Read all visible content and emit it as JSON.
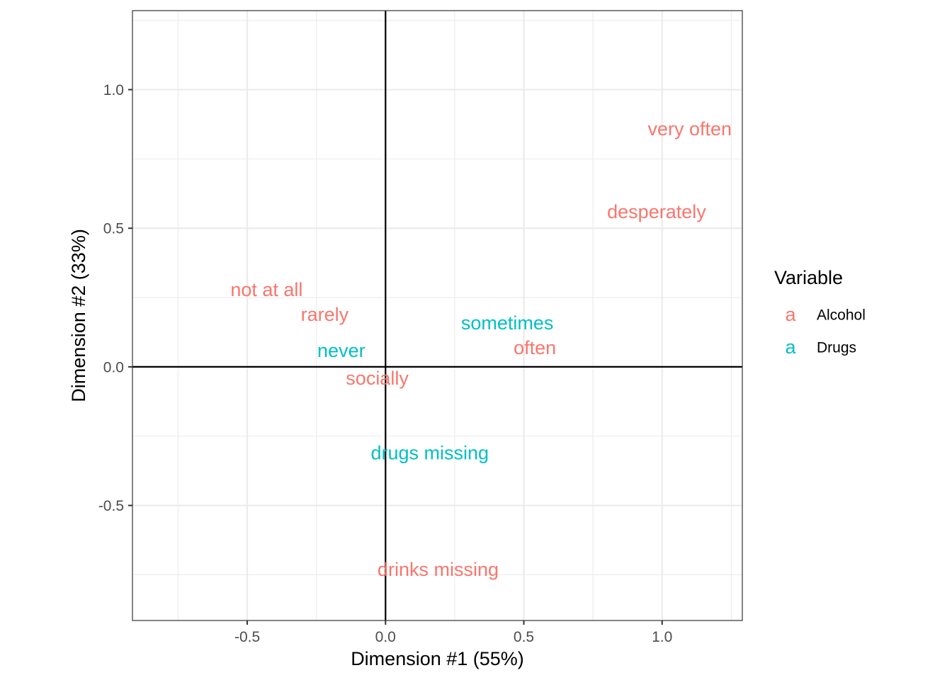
{
  "chart_data": {
    "type": "scatter",
    "xlabel": "Dimension #1 (55%)",
    "ylabel": "Dimension #2 (33%)",
    "xlim": [
      -0.915,
      1.29
    ],
    "ylim": [
      -0.915,
      1.285
    ],
    "x_ticks": [
      -0.5,
      0.0,
      0.5,
      1.0
    ],
    "x_tick_labels": [
      "-0.5",
      "0.0",
      "0.5",
      "1.0"
    ],
    "y_ticks": [
      -0.5,
      0.0,
      0.5,
      1.0
    ],
    "y_tick_labels": [
      "-0.5",
      "0.0",
      "0.5",
      "1.0"
    ],
    "x_minor": [
      -0.75,
      -0.25,
      0.25,
      0.75,
      1.25
    ],
    "y_minor": [
      -0.75,
      -0.25,
      0.25,
      0.75,
      1.25
    ],
    "grid": true,
    "reference_lines": {
      "x": 0,
      "y": 0
    },
    "legend": {
      "title": "Variable",
      "position": "right",
      "key_glyph": "a",
      "entries": [
        {
          "name": "Alcohol",
          "color": "#F8766D"
        },
        {
          "name": "Drugs",
          "color": "#00BFC4"
        }
      ]
    },
    "series": [
      {
        "name": "Alcohol",
        "color": "#F8766D",
        "points": [
          {
            "label": "very often",
            "x": 1.1,
            "y": 0.86
          },
          {
            "label": "desperately",
            "x": 0.98,
            "y": 0.56
          },
          {
            "label": "not at all",
            "x": -0.43,
            "y": 0.28
          },
          {
            "label": "rarely",
            "x": -0.22,
            "y": 0.19
          },
          {
            "label": "often",
            "x": 0.54,
            "y": 0.07
          },
          {
            "label": "socially",
            "x": -0.03,
            "y": -0.04
          },
          {
            "label": "drinks missing",
            "x": 0.19,
            "y": -0.73
          }
        ]
      },
      {
        "name": "Drugs",
        "color": "#00BFC4",
        "points": [
          {
            "label": "sometimes",
            "x": 0.44,
            "y": 0.16
          },
          {
            "label": "never",
            "x": -0.16,
            "y": 0.06
          },
          {
            "label": "drugs missing",
            "x": 0.16,
            "y": -0.31
          }
        ]
      }
    ]
  }
}
